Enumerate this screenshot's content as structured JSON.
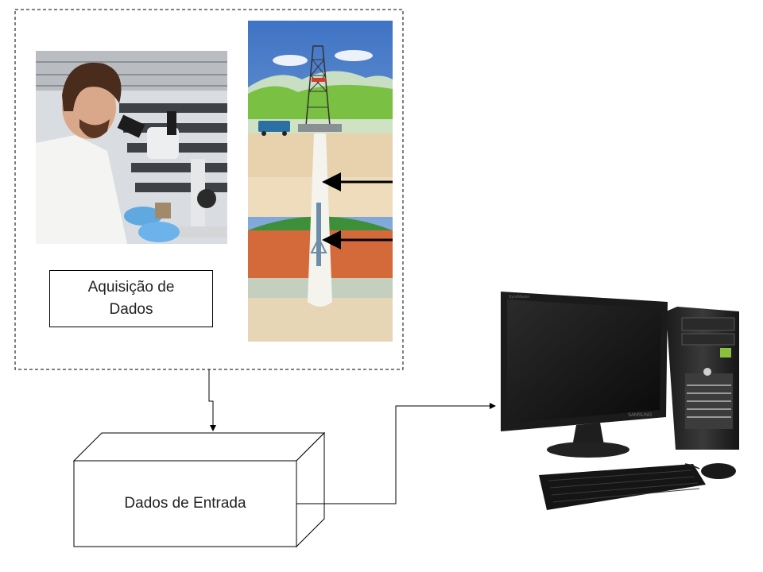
{
  "acquisition": {
    "label": "Aquisição de Dados",
    "items": [
      {
        "icon": "microscope-lab-photo"
      },
      {
        "icon": "oil-well-borehole-diagram"
      }
    ]
  },
  "input_data": {
    "label": "Dados de Entrada"
  },
  "computer": {
    "icon": "desktop-computer-icon",
    "brand_monitor": "SAMSUNG",
    "brand_screen": "SyncMaster"
  },
  "colors": {
    "line": "#000000",
    "sky": "#5b8fcf",
    "soil": "#e8d2ad",
    "oil_layer": "#d4693a",
    "grass": "#7ac043"
  }
}
